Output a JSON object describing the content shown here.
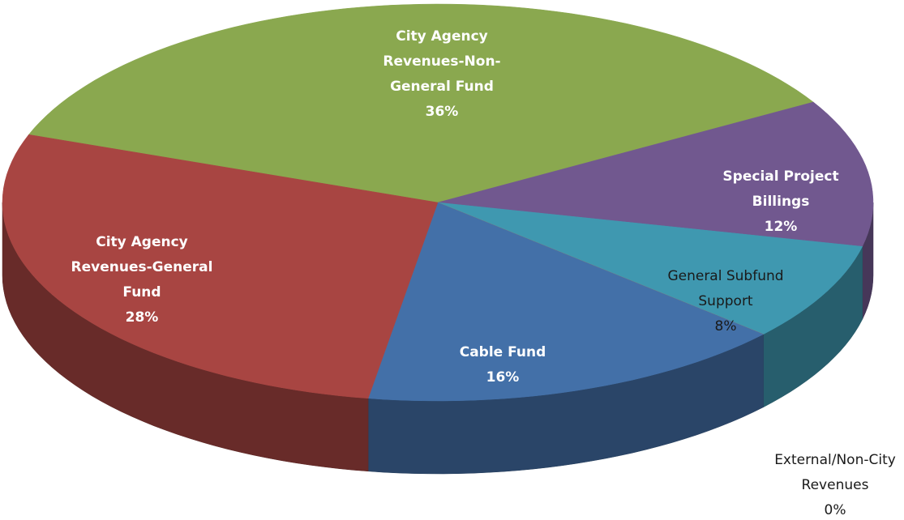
{
  "chart_data": {
    "type": "pie",
    "three_d": true,
    "categories": [
      "City Agency Revenues-Non-General Fund",
      "Special Project Billings",
      "General Subfund Support",
      "External/Non-City Revenues",
      "Cable Fund",
      "City Agency Revenues-General Fund"
    ],
    "values": [
      36,
      12,
      8,
      0,
      16,
      28
    ],
    "value_labels": [
      "36%",
      "12%",
      "8%",
      "0%",
      "16%",
      "28%"
    ],
    "colors": [
      "#8aa84f",
      "#71588f",
      "#3f98b0",
      "#e98a36",
      "#4370a8",
      "#a84542"
    ]
  }
}
